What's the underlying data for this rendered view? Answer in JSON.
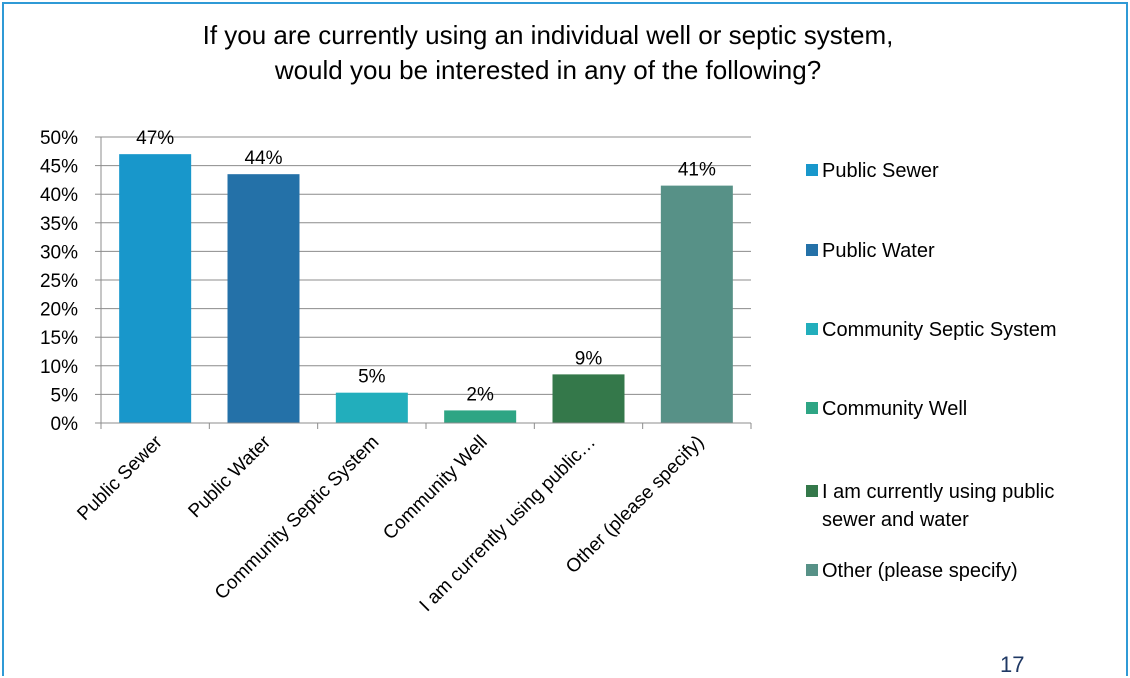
{
  "chart_data": {
    "type": "bar",
    "title": "If you are currently using an individual well or septic system,\nwould you be interested in any of the following?",
    "categories": [
      "Public Sewer",
      "Public Water",
      "Community Septic System",
      "Community Well",
      "I am currently using public…",
      "Other (please specify)"
    ],
    "values": [
      0.47,
      0.435,
      0.053,
      0.022,
      0.085,
      0.415
    ],
    "data_labels": [
      "47%",
      "44%",
      "5%",
      "2%",
      "9%",
      "41%"
    ],
    "colors": [
      "#1897CB",
      "#2471A8",
      "#22AEBC",
      "#2EA584",
      "#34784A",
      "#579187"
    ],
    "ylim": [
      0,
      0.5
    ],
    "yticks": [
      "0%",
      "5%",
      "10%",
      "15%",
      "20%",
      "25%",
      "30%",
      "35%",
      "40%",
      "45%",
      "50%"
    ],
    "grid": true,
    "legend_position": "right",
    "legend": [
      [
        "Public Sewer"
      ],
      [
        "Public Water"
      ],
      [
        "Community Septic System"
      ],
      [
        "Community Well"
      ],
      [
        "I am currently using public",
        "sewer and water"
      ],
      [
        "Other (please specify)"
      ]
    ]
  },
  "page_number": "17"
}
